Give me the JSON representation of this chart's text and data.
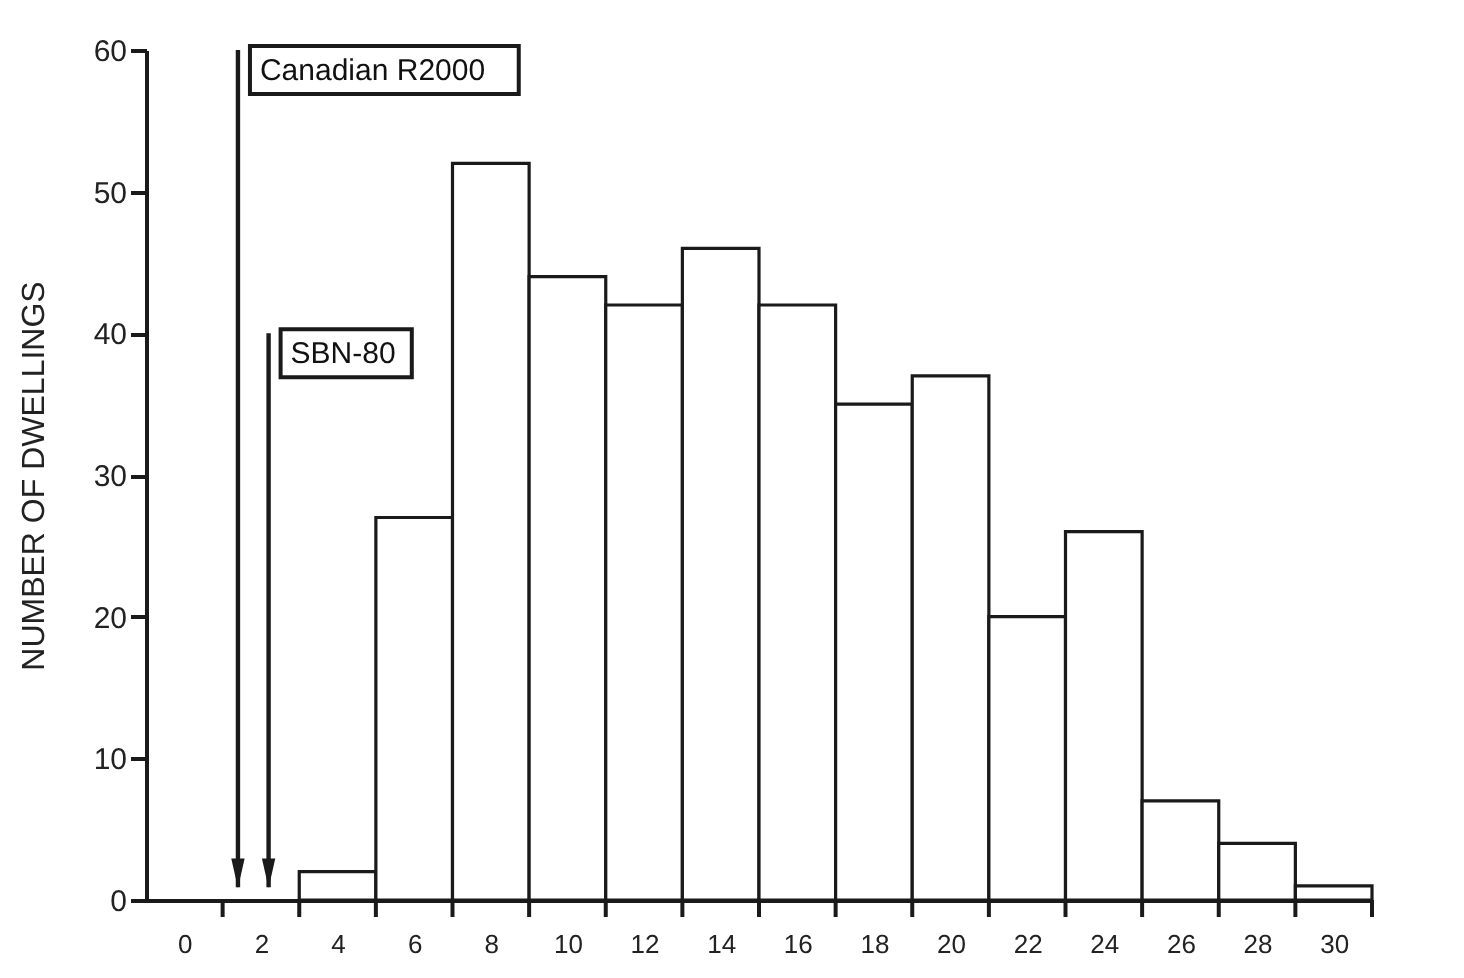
{
  "chart_data": {
    "type": "histogram",
    "ylabel": "NUMBER OF DWELLINGS",
    "bins": [
      -1,
      1,
      3,
      5,
      7,
      9,
      11,
      13,
      15,
      17,
      19,
      21,
      23,
      25,
      27,
      29,
      31
    ],
    "values": [
      0,
      0,
      2,
      27,
      52,
      44,
      42,
      46,
      42,
      35,
      37,
      20,
      26,
      7,
      4,
      1
    ],
    "color": "#ffffff",
    "xlim": [
      -1,
      31
    ],
    "xticks": [
      0,
      2,
      4,
      6,
      8,
      10,
      12,
      14,
      16,
      18,
      20,
      22,
      24,
      26,
      28,
      30,
      {
        "value": 1,
        "label": null
      },
      {
        "value": 3,
        "label": null
      },
      {
        "value": 5,
        "label": null
      },
      {
        "value": 7,
        "label": null
      },
      {
        "value": 9,
        "label": null
      },
      {
        "value": 11,
        "label": null
      },
      {
        "value": 13,
        "label": null
      },
      {
        "value": 15,
        "label": null
      },
      {
        "value": 17,
        "label": null
      },
      {
        "value": 19,
        "label": null
      },
      {
        "value": 21,
        "label": null
      },
      {
        "value": 23,
        "label": null
      },
      {
        "value": 25,
        "label": null
      },
      {
        "value": 27,
        "label": null
      },
      {
        "value": 29,
        "label": null
      },
      {
        "value": 31,
        "label": null
      }
    ],
    "ylim": [
      0,
      60
    ],
    "yticks": [
      0,
      10,
      20,
      30,
      40,
      50,
      60
    ],
    "grid": false,
    "ref_lines": [
      {
        "axis": "x",
        "value": 1.4,
        "label": "Canadian R2000"
      },
      {
        "axis": "x",
        "value": 2.2,
        "label": "SBN-80"
      }
    ]
  }
}
